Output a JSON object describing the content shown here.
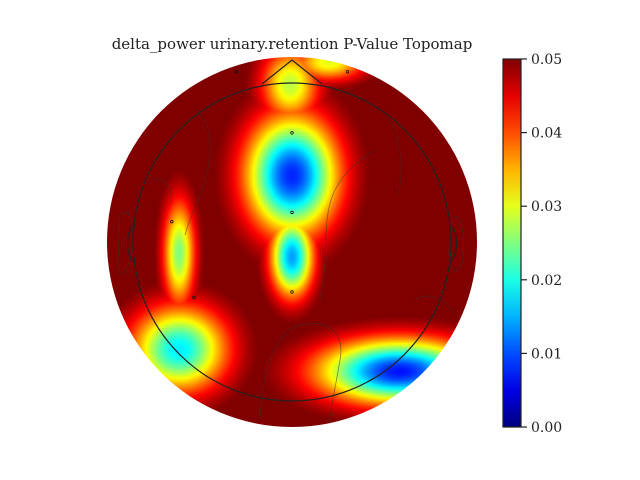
{
  "chart_data": {
    "type": "heatmap",
    "title": "delta_power urinary.retention P-Value Topomap",
    "colormap": "jet",
    "colorbar": {
      "vmin": 0.0,
      "vmax": 0.05,
      "ticks": [
        "0.00",
        "0.01",
        "0.02",
        "0.03",
        "0.04",
        "0.05"
      ]
    },
    "electrodes": [
      {
        "x": -0.3,
        "y": 0.92
      },
      {
        "x": 0.3,
        "y": 0.92
      },
      {
        "x": 0.0,
        "y": 0.59
      },
      {
        "x": -0.65,
        "y": 0.11
      },
      {
        "x": 0.0,
        "y": 0.16
      },
      {
        "x": 0.0,
        "y": -0.27
      },
      {
        "x": -0.53,
        "y": -0.3
      }
    ],
    "significance_regions": [
      {
        "x": 0.0,
        "y": 0.36,
        "sx": 0.17,
        "sy": 0.22,
        "min_p": 0.008
      },
      {
        "x": 0.0,
        "y": -0.08,
        "sx": 0.08,
        "sy": 0.15,
        "min_p": 0.014
      },
      {
        "x": -0.01,
        "y": 0.85,
        "sx": 0.11,
        "sy": 0.14,
        "min_p": 0.028
      },
      {
        "x": -0.61,
        "y": -0.06,
        "sx": 0.06,
        "sy": 0.2,
        "min_p": 0.025
      },
      {
        "x": -0.61,
        "y": -0.58,
        "sx": 0.18,
        "sy": 0.16,
        "min_p": 0.018
      },
      {
        "x": 0.58,
        "y": -0.7,
        "sx": 0.3,
        "sy": 0.12,
        "min_p": 0.007
      },
      {
        "x": 0.2,
        "y": 0.97,
        "sx": 0.14,
        "sy": 0.07,
        "min_p": 0.03
      }
    ],
    "head_outline": true,
    "contours": true
  }
}
